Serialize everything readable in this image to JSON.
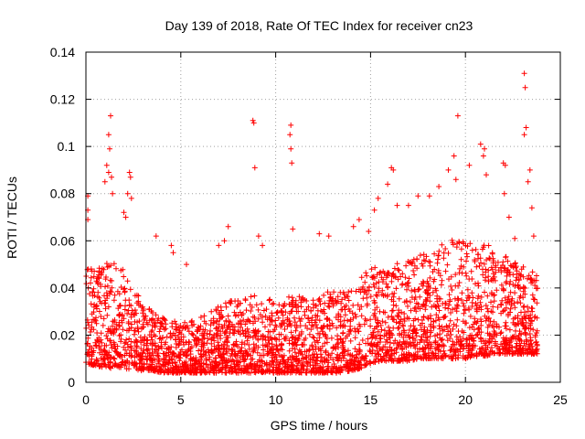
{
  "colors": {
    "series": "#ff0000",
    "frame": "#000000",
    "grid": "#a0a0a0"
  },
  "chart_data": {
    "type": "scatter",
    "title": "Day 139 of 2018, Rate Of TEC Index for receiver cn23",
    "xlabel": "GPS time / hours",
    "ylabel": "ROTI / TECUs",
    "xlim": [
      0,
      25
    ],
    "ylim": [
      0,
      0.14
    ],
    "xticks": [
      0,
      5,
      10,
      15,
      20,
      25
    ],
    "yticks": [
      0,
      0.02,
      0.04,
      0.06,
      0.08,
      0.1,
      0.12,
      0.14
    ],
    "xtick_labels": [
      "0",
      "5",
      "10",
      "15",
      "20",
      "25"
    ],
    "ytick_labels": [
      "0",
      "0.02",
      "0.04",
      "0.06",
      "0.08",
      "0.1",
      "0.12",
      "0.14"
    ],
    "grid": true,
    "marker": "+",
    "series": [
      {
        "name": "ROTI",
        "envelope_x": [
          0,
          0.5,
          1,
          1.5,
          2,
          2.5,
          3,
          3.5,
          4,
          4.5,
          5,
          5.5,
          6,
          6.5,
          7,
          7.5,
          8,
          8.5,
          9,
          9.5,
          10,
          10.5,
          11,
          11.5,
          12,
          12.5,
          13,
          13.5,
          14,
          14.5,
          15,
          15.5,
          16,
          16.5,
          17,
          17.5,
          18,
          18.5,
          19,
          19.5,
          20,
          20.5,
          21,
          21.5,
          22,
          22.5,
          23,
          23.5,
          23.8
        ],
        "envelope_low": [
          0.008,
          0.007,
          0.006,
          0.006,
          0.006,
          0.005,
          0.005,
          0.005,
          0.004,
          0.004,
          0.004,
          0.004,
          0.004,
          0.004,
          0.004,
          0.004,
          0.004,
          0.004,
          0.004,
          0.004,
          0.004,
          0.004,
          0.004,
          0.004,
          0.004,
          0.004,
          0.004,
          0.004,
          0.005,
          0.006,
          0.008,
          0.009,
          0.009,
          0.009,
          0.009,
          0.01,
          0.01,
          0.01,
          0.01,
          0.01,
          0.01,
          0.011,
          0.011,
          0.012,
          0.012,
          0.012,
          0.012,
          0.012,
          0.012
        ],
        "envelope_high": [
          0.05,
          0.048,
          0.05,
          0.052,
          0.048,
          0.04,
          0.035,
          0.03,
          0.028,
          0.026,
          0.026,
          0.028,
          0.028,
          0.03,
          0.033,
          0.035,
          0.035,
          0.036,
          0.038,
          0.036,
          0.034,
          0.036,
          0.038,
          0.036,
          0.035,
          0.038,
          0.04,
          0.038,
          0.04,
          0.045,
          0.048,
          0.05,
          0.052,
          0.05,
          0.052,
          0.054,
          0.055,
          0.058,
          0.06,
          0.062,
          0.06,
          0.058,
          0.06,
          0.056,
          0.054,
          0.052,
          0.05,
          0.048,
          0.046
        ],
        "outliers": [
          [
            0.1,
            0.079
          ],
          [
            0.1,
            0.073
          ],
          [
            0.1,
            0.069
          ],
          [
            1.3,
            0.113
          ],
          [
            1.2,
            0.105
          ],
          [
            1.25,
            0.099
          ],
          [
            1.1,
            0.092
          ],
          [
            1.2,
            0.089
          ],
          [
            1.35,
            0.087
          ],
          [
            1.0,
            0.085
          ],
          [
            1.4,
            0.08
          ],
          [
            2.3,
            0.089
          ],
          [
            2.35,
            0.087
          ],
          [
            2.2,
            0.08
          ],
          [
            2.4,
            0.078
          ],
          [
            2.0,
            0.072
          ],
          [
            2.1,
            0.07
          ],
          [
            3.7,
            0.062
          ],
          [
            4.5,
            0.058
          ],
          [
            4.6,
            0.055
          ],
          [
            5.3,
            0.05
          ],
          [
            7.5,
            0.066
          ],
          [
            7.3,
            0.06
          ],
          [
            8.8,
            0.111
          ],
          [
            8.85,
            0.11
          ],
          [
            8.9,
            0.091
          ],
          [
            9.1,
            0.062
          ],
          [
            9.3,
            0.058
          ],
          [
            7.0,
            0.058
          ],
          [
            10.8,
            0.109
          ],
          [
            10.75,
            0.105
          ],
          [
            10.8,
            0.099
          ],
          [
            10.85,
            0.093
          ],
          [
            10.9,
            0.065
          ],
          [
            12.3,
            0.063
          ],
          [
            12.8,
            0.062
          ],
          [
            14.1,
            0.066
          ],
          [
            14.4,
            0.069
          ],
          [
            14.9,
            0.064
          ],
          [
            15.2,
            0.073
          ],
          [
            15.4,
            0.078
          ],
          [
            16.1,
            0.091
          ],
          [
            16.2,
            0.09
          ],
          [
            15.9,
            0.084
          ],
          [
            16.4,
            0.075
          ],
          [
            17.0,
            0.075
          ],
          [
            17.5,
            0.079
          ],
          [
            18.1,
            0.079
          ],
          [
            18.6,
            0.083
          ],
          [
            19.1,
            0.09
          ],
          [
            19.4,
            0.096
          ],
          [
            19.5,
            0.086
          ],
          [
            19.6,
            0.113
          ],
          [
            20.2,
            0.092
          ],
          [
            20.8,
            0.101
          ],
          [
            21.0,
            0.099
          ],
          [
            20.95,
            0.096
          ],
          [
            21.1,
            0.088
          ],
          [
            22.0,
            0.093
          ],
          [
            22.1,
            0.092
          ],
          [
            22.05,
            0.08
          ],
          [
            22.3,
            0.07
          ],
          [
            22.6,
            0.061
          ],
          [
            23.1,
            0.131
          ],
          [
            23.15,
            0.125
          ],
          [
            23.2,
            0.108
          ],
          [
            23.1,
            0.105
          ],
          [
            23.4,
            0.09
          ],
          [
            23.3,
            0.085
          ],
          [
            23.5,
            0.074
          ],
          [
            23.6,
            0.062
          ]
        ]
      }
    ]
  }
}
